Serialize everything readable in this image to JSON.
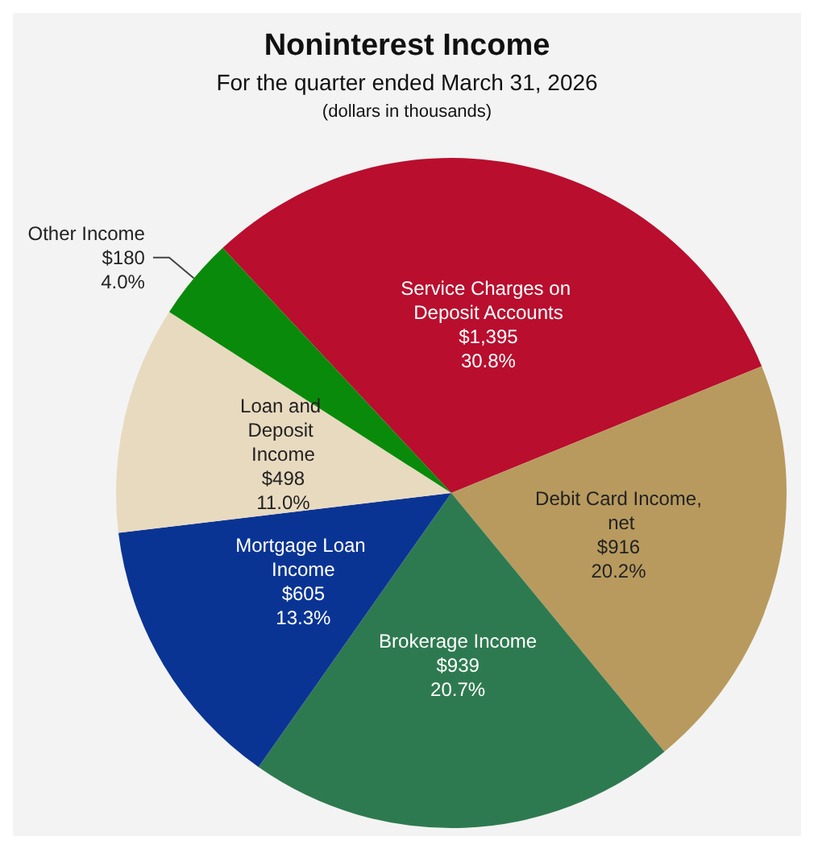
{
  "chart_data": {
    "type": "pie",
    "title": "Noninterest Income",
    "subtitle": "For the quarter ended March 31, 2026",
    "annotations": [
      "(dollars in thousands)"
    ],
    "categories": [
      "Service Charges on Deposit Accounts",
      "Debit Card Income, net",
      "Brokerage Income",
      "Mortgage Loan Income",
      "Loan and Deposit Income",
      "Other Income"
    ],
    "values": [
      1395,
      916,
      939,
      605,
      498,
      180
    ],
    "value_labels": [
      "$1,395\n30.8%",
      "$916\n20.2%",
      "$939\n20.7%",
      "$605\n13.3%",
      "$498\n11.0%",
      "$180\n4.0%"
    ],
    "colors": [
      "#b90e2e",
      "#b89a5e",
      "#2e7a50",
      "#0a3494",
      "#e8dabf",
      "#0a8a0a"
    ],
    "legend": false
  }
}
